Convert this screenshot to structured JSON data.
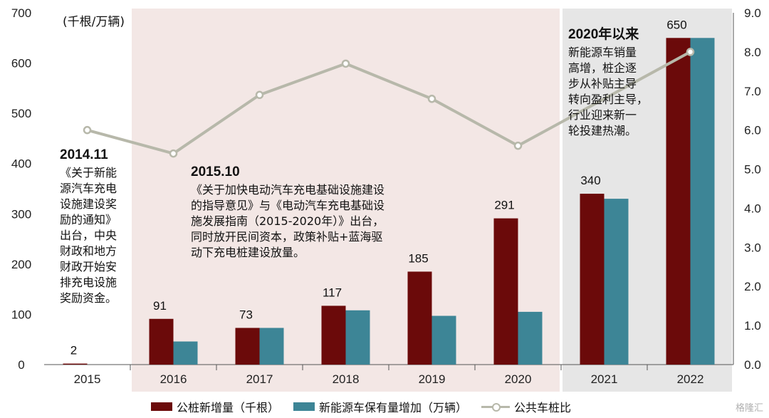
{
  "chart_data": {
    "type": "bar",
    "unit_label": "(千根/万辆)",
    "categories": [
      "2015",
      "2016",
      "2017",
      "2018",
      "2019",
      "2020",
      "2021",
      "2022"
    ],
    "series": [
      {
        "name": "公桩新增量（千根）",
        "type": "bar",
        "axis": "left",
        "color": "#6b0a0a",
        "values": [
          2,
          91,
          73,
          117,
          185,
          291,
          340,
          650
        ],
        "labels": [
          "2",
          "91",
          "73",
          "117",
          "185",
          "291",
          "340",
          "650"
        ]
      },
      {
        "name": "新能源车保有量增加（万辆）",
        "type": "bar",
        "axis": "left",
        "color": "#3d8596",
        "values": [
          null,
          46,
          73,
          108,
          97,
          105,
          330,
          650
        ]
      },
      {
        "name": "公共车桩比",
        "type": "line",
        "axis": "right",
        "color": "#b7b8aa",
        "values": [
          6.0,
          5.4,
          6.9,
          7.7,
          6.8,
          5.6,
          null,
          8.0
        ]
      }
    ],
    "y_left": {
      "min": 0,
      "max": 700,
      "ticks": [
        "0",
        "100",
        "200",
        "300",
        "400",
        "500",
        "600",
        "700"
      ]
    },
    "y_right": {
      "min": 0,
      "max": 9,
      "ticks": [
        "0.0",
        "1.0",
        "2.0",
        "3.0",
        "4.0",
        "5.0",
        "6.0",
        "7.0",
        "8.0",
        "9.0"
      ]
    },
    "bands": [
      {
        "from": "2016",
        "to": "2020",
        "color": "#f3e7e5"
      },
      {
        "from": "2021",
        "to": "2022",
        "color": "#e6e6e6"
      }
    ],
    "annotations": [
      {
        "heading": "2014.11",
        "lines": [
          "《关于新能",
          "源汽车充电",
          "设施建设奖",
          "励的通知》",
          "出台，中央",
          "财政和地方",
          "财政开始安",
          "排充电设施",
          "奖励资金。"
        ]
      },
      {
        "heading": "2015.10",
        "lines": [
          "《关于加快电动汽车充电基础设施建设",
          "的指导意见》与《电动汽车充电基础设",
          "施发展指南（2015-2020年）》出台，",
          "同时放开民间资本，政策补贴+蓝海驱",
          "动下充电桩建设放量。"
        ]
      },
      {
        "heading": "2020年以来",
        "lines": [
          "新能源车销量",
          "高增，桩企逐",
          "步从补贴主导",
          "转向盈利主导，",
          "行业迎来新一",
          "轮投建热潮。"
        ]
      }
    ]
  },
  "legend": {
    "bar1": "公桩新增量（千根）",
    "bar2": "新能源车保有量增加（万辆）",
    "line": "公共车桩比"
  },
  "watermark": "格隆汇"
}
